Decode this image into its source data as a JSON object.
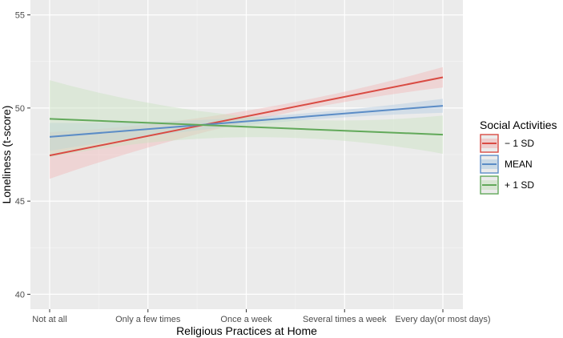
{
  "chart_data": {
    "type": "line",
    "xlabel": "Religious Practices at Home",
    "ylabel": "Loneliness (t-score)",
    "categories": [
      "Not at all",
      "Only a few times",
      "Once a week",
      "Several times a week",
      "Every day(or most days)"
    ],
    "ylim": [
      39.2,
      55.8
    ],
    "yticks": [
      40,
      45,
      50,
      55
    ],
    "grid": true,
    "legend": {
      "title": "Social Activities",
      "position": "right"
    },
    "series": [
      {
        "name": "− 1 SD",
        "color": "#d94b43",
        "fill": "#f2b7b7",
        "start": 47.45,
        "end": 51.65,
        "ci_start": [
          46.2,
          48.7
        ],
        "ci_end": [
          51.1,
          52.2
        ]
      },
      {
        "name": "MEAN",
        "color": "#5b8cc6",
        "fill": "#b3cde3",
        "start": 48.45,
        "end": 50.12,
        "ci_start": [
          47.7,
          49.2
        ],
        "ci_end": [
          49.75,
          50.5
        ]
      },
      {
        "name": "+ 1 SD",
        "color": "#62a95a",
        "fill": "#c9e3c1",
        "start": 49.42,
        "end": 48.57,
        "ci_start": [
          47.4,
          51.55
        ],
        "ci_end": [
          47.55,
          49.6
        ]
      }
    ]
  }
}
